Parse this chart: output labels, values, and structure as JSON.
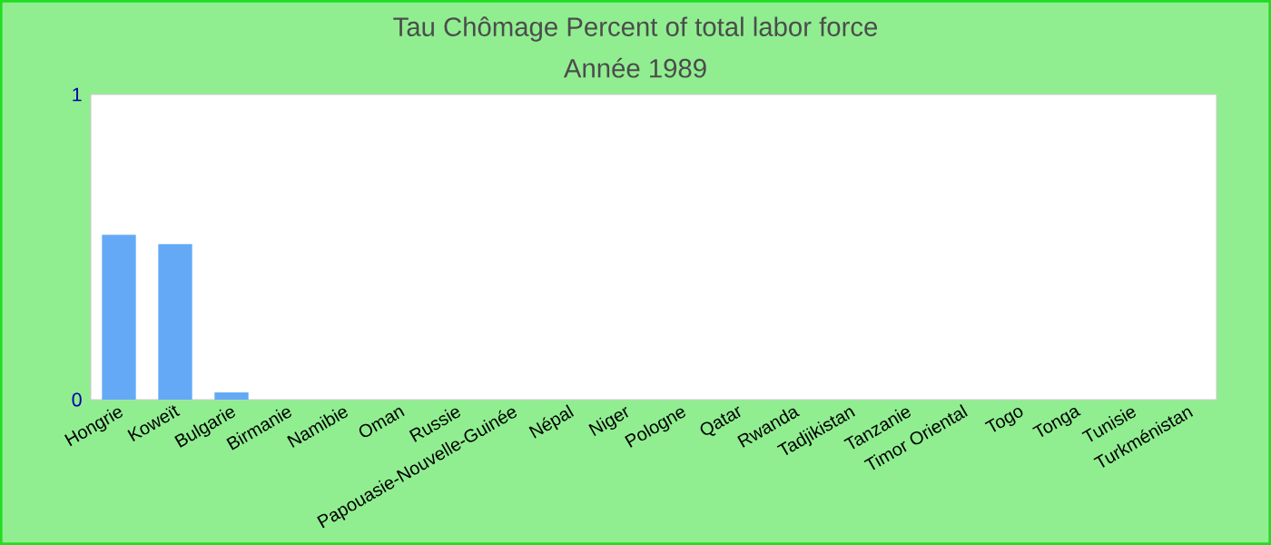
{
  "chart_data": {
    "type": "bar",
    "title": "Tau Chômage  Percent of total labor force",
    "subtitle": "Année 1989",
    "categories": [
      "Hongrie",
      "Koweït",
      "Bulgarie",
      "Birmanie",
      "Namibie",
      "Oman",
      "Russie",
      "Papouasie-Nouvelle-Guinée",
      "Népal",
      "Niger",
      "Pologne",
      "Qatar",
      "Rwanda",
      "Tadjikistan",
      "Tanzanie",
      "Timor Oriental",
      "Togo",
      "Tonga",
      "Tunisie",
      "Turkménistan"
    ],
    "values": [
      0.54,
      0.51,
      0.024,
      0,
      0,
      0,
      0,
      0,
      0,
      0,
      0,
      0,
      0,
      0,
      0,
      0,
      0,
      0,
      0,
      0
    ],
    "color": "#63a9f5",
    "ylim": [
      0,
      1
    ],
    "yticks": [
      0,
      1
    ],
    "grid": false
  }
}
